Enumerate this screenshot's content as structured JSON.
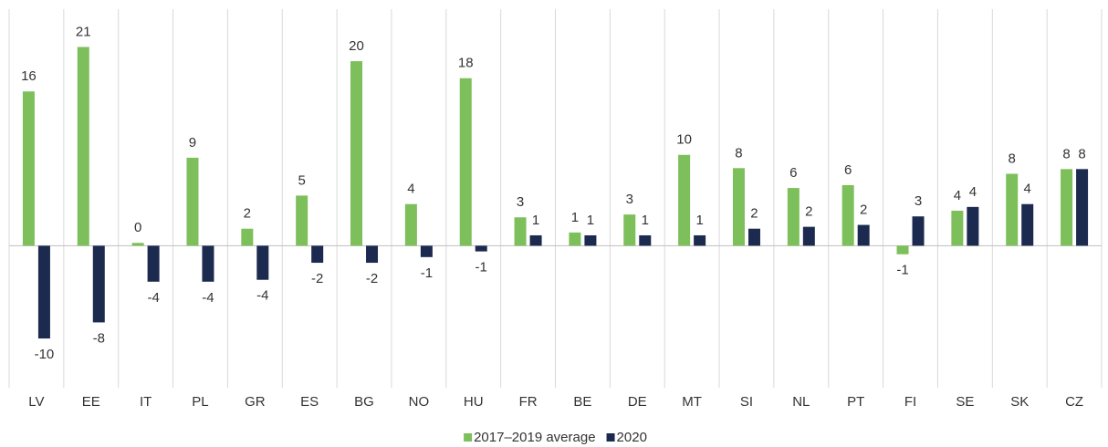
{
  "chart_data": {
    "type": "bar",
    "categories": [
      "LV",
      "EE",
      "IT",
      "PL",
      "GR",
      "ES",
      "BG",
      "NO",
      "HU",
      "FR",
      "BE",
      "DE",
      "MT",
      "SI",
      "NL",
      "PT",
      "FI",
      "SE",
      "SK",
      "CZ"
    ],
    "series": [
      {
        "name": "2017–2019 average",
        "color": "#7dbf5a",
        "values": [
          16.3,
          21.0,
          0.3,
          9.3,
          1.8,
          5.3,
          19.5,
          4.4,
          17.7,
          3.0,
          1.4,
          3.3,
          9.6,
          8.2,
          6.1,
          6.4,
          -0.9,
          3.7,
          7.6,
          8.1
        ],
        "value_labels": [
          "16",
          "21",
          "0",
          "9",
          "2",
          "5",
          "20",
          "4",
          "18",
          "3",
          "1",
          "3",
          "10",
          "8",
          "6",
          "6",
          "-1",
          "4",
          "8",
          "8"
        ]
      },
      {
        "name": "2020",
        "color": "#1c2a4f",
        "values": [
          -9.8,
          -8.1,
          -3.8,
          -3.8,
          -3.6,
          -1.8,
          -1.8,
          -1.2,
          -0.6,
          1.1,
          1.1,
          1.1,
          1.1,
          1.8,
          2.0,
          2.2,
          3.1,
          4.1,
          4.4,
          8.1
        ],
        "value_labels": [
          "-10",
          "-8",
          "-4",
          "-4",
          "-4",
          "-2",
          "-2",
          "-1",
          "-1",
          "1",
          "1",
          "1",
          "1",
          "2",
          "2",
          "2",
          "3",
          "4",
          "4",
          "8"
        ]
      }
    ],
    "ylim": [
      -15,
      25
    ]
  }
}
